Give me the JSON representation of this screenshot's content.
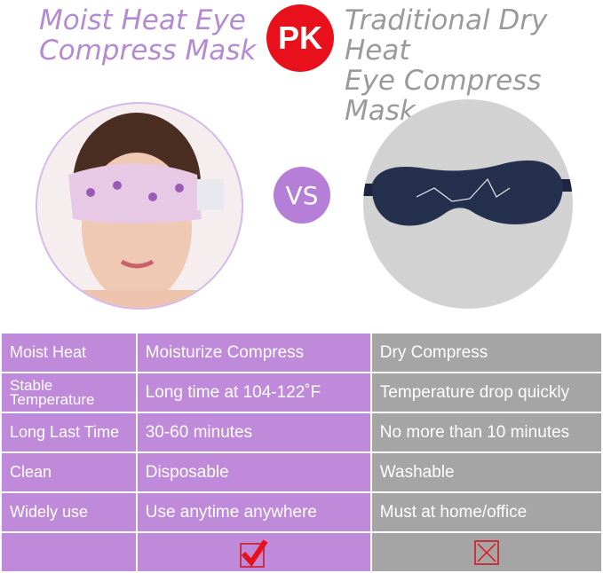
{
  "header": {
    "left_title": [
      "Moist Heat Eye",
      "Compress Mask"
    ],
    "badge": "PK",
    "right_title": [
      "Traditional Dry Heat",
      "Eye Compress Mask"
    ]
  },
  "vs_label": "VS",
  "colors": {
    "purple": "#bf8ad9",
    "gray": "#a5a5a5",
    "badge_red": "#e8101b",
    "check_red": "#e8101b"
  },
  "table": {
    "rows": [
      {
        "feature": "Moist Heat",
        "moist": "Moisturize Compress",
        "dry": "Dry Compress"
      },
      {
        "feature": "Stable Temperature",
        "moist": "Long time at 104-122˚F",
        "dry": "Temperature drop quickly"
      },
      {
        "feature": "Long Last Time",
        "moist": "30-60 minutes",
        "dry": "No more than 10 minutes"
      },
      {
        "feature": "Clean",
        "moist": "Disposable",
        "dry": "Washable"
      },
      {
        "feature": "Widely use",
        "moist": "Use anytime anywhere",
        "dry": "Must at home/office"
      }
    ],
    "final_row": {
      "moist_icon": "check-box-icon",
      "dry_icon": "x-box-icon"
    }
  }
}
